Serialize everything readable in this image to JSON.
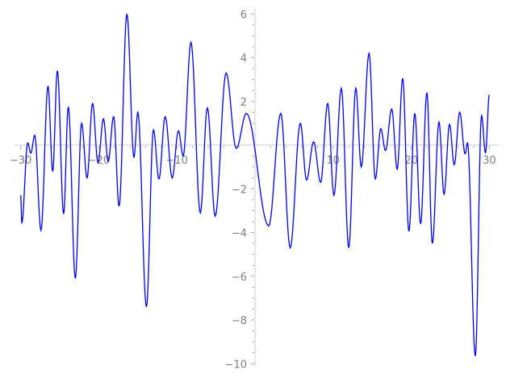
{
  "chart_data": {
    "type": "line",
    "title": "",
    "xlabel": "",
    "ylabel": "",
    "xlim": [
      -30,
      30
    ],
    "ylim": [
      -10,
      6.3
    ],
    "x_ticks": [
      -30,
      -20,
      -10,
      10,
      20,
      30
    ],
    "x_tick_labels": [
      "−30",
      "−20",
      "−10",
      "10",
      "20",
      "30"
    ],
    "y_ticks": [
      6,
      4,
      2,
      -2,
      -4,
      -6,
      -8,
      -10
    ],
    "y_tick_labels": [
      "6",
      "4",
      "2",
      "−2",
      "−4",
      "−6",
      "−8",
      "−10"
    ],
    "grid": false,
    "line_color": "#0000ff",
    "axis_color": "#dddddd",
    "points": [
      [
        -30,
        -2.3
      ],
      [
        -29.85,
        -3.55
      ],
      [
        -29.1,
        0.1
      ],
      [
        -28.7,
        -0.37
      ],
      [
        -28.2,
        0.45
      ],
      [
        -27.4,
        -3.9
      ],
      [
        -26.5,
        2.7
      ],
      [
        -25.9,
        -1.2
      ],
      [
        -25.3,
        3.4
      ],
      [
        -24.5,
        -3.15
      ],
      [
        -23.9,
        1.75
      ],
      [
        -23.0,
        -6.1
      ],
      [
        -22.2,
        1.0
      ],
      [
        -21.5,
        -1.5
      ],
      [
        -20.8,
        1.9
      ],
      [
        -20.1,
        -0.8
      ],
      [
        -19.4,
        1.2
      ],
      [
        -18.8,
        -0.75
      ],
      [
        -18.1,
        1.3
      ],
      [
        -17.4,
        -2.8
      ],
      [
        -16.4,
        6.0
      ],
      [
        -15.5,
        -0.55
      ],
      [
        -15.0,
        1.5
      ],
      [
        -13.9,
        -7.4
      ],
      [
        -13.0,
        0.7
      ],
      [
        -12.3,
        -1.55
      ],
      [
        -11.5,
        1.3
      ],
      [
        -10.6,
        -1.5
      ],
      [
        -9.8,
        0.65
      ],
      [
        -9.2,
        -0.5
      ],
      [
        -8.2,
        4.7
      ],
      [
        -7.0,
        -3.1
      ],
      [
        -6.1,
        1.7
      ],
      [
        -5.1,
        -3.25
      ],
      [
        -3.7,
        3.3
      ],
      [
        -2.4,
        -0.15
      ],
      [
        -1.1,
        1.45
      ],
      [
        1.75,
        -3.7
      ],
      [
        3.3,
        1.45
      ],
      [
        4.5,
        -4.7
      ],
      [
        5.8,
        1.0
      ],
      [
        6.6,
        -1.6
      ],
      [
        7.5,
        0.15
      ],
      [
        8.4,
        -1.7
      ],
      [
        9.3,
        1.9
      ],
      [
        10.1,
        -2.3
      ],
      [
        11.05,
        2.6
      ],
      [
        12.0,
        -4.7
      ],
      [
        12.9,
        2.6
      ],
      [
        13.6,
        -1.0
      ],
      [
        14.6,
        4.2
      ],
      [
        15.4,
        -1.55
      ],
      [
        16.1,
        0.75
      ],
      [
        16.7,
        -0.25
      ],
      [
        17.5,
        1.65
      ],
      [
        18.2,
        -1.1
      ],
      [
        18.9,
        3.05
      ],
      [
        19.7,
        -3.95
      ],
      [
        20.45,
        1.45
      ],
      [
        21.2,
        -3.6
      ],
      [
        22.0,
        2.4
      ],
      [
        22.7,
        -4.5
      ],
      [
        23.55,
        1.05
      ],
      [
        24.2,
        -2.25
      ],
      [
        24.9,
        0.95
      ],
      [
        25.5,
        -0.9
      ],
      [
        26.2,
        1.5
      ],
      [
        26.9,
        -0.4
      ],
      [
        27.2,
        0.1
      ],
      [
        28.2,
        -9.65
      ],
      [
        29.0,
        1.35
      ],
      [
        29.5,
        -0.35
      ],
      [
        30,
        2.3
      ]
    ]
  }
}
